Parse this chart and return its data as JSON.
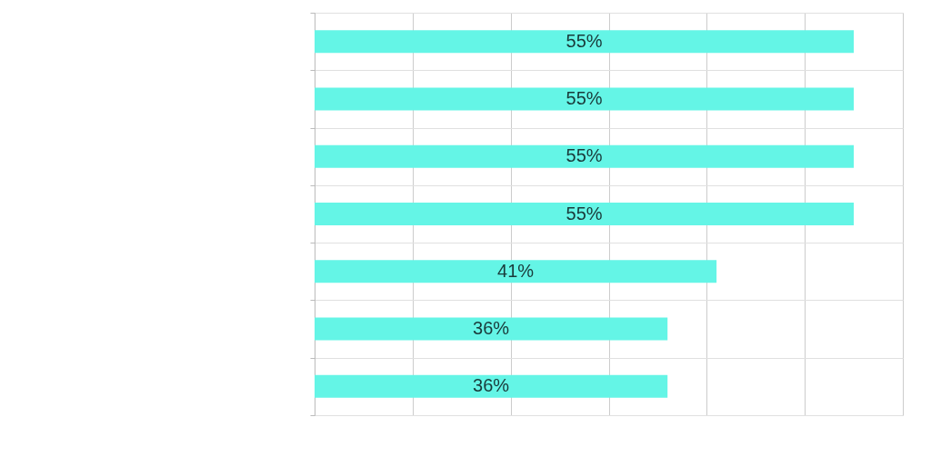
{
  "chart_data": {
    "type": "bar",
    "orientation": "horizontal",
    "categories": [
      null,
      null,
      null,
      null,
      null,
      null,
      null
    ],
    "values": [
      55,
      55,
      55,
      55,
      41,
      36,
      36
    ],
    "value_labels": [
      "55%",
      "55%",
      "55%",
      "55%",
      "41%",
      "36%",
      "36%"
    ],
    "color": "#64f5e6",
    "xlim": [
      0,
      60
    ],
    "xticks": [
      {
        "value": 0,
        "label": null
      },
      {
        "value": 10,
        "label": null
      },
      {
        "value": 20,
        "label": null
      },
      {
        "value": 30,
        "label": null
      },
      {
        "value": 40,
        "label": null
      },
      {
        "value": 50,
        "label": null
      },
      {
        "value": 60,
        "label": null
      }
    ],
    "tick_labels": false,
    "grid": true
  }
}
